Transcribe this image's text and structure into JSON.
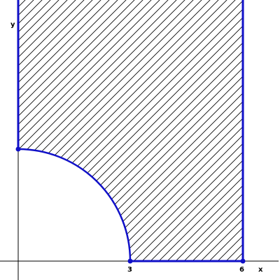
{
  "axes": {
    "x_label": "x",
    "y_label": "y"
  },
  "tick_labels": {
    "three": "3",
    "six": "6"
  },
  "region": {
    "description_values": {
      "inner_radius": 3,
      "right_bound_x": 6,
      "left_bound_x": 0,
      "bottom_bound_y": 0
    },
    "hatch": true
  },
  "colors": {
    "boundary": "#1010c8",
    "hatch": "#000000",
    "axis": "#000000"
  }
}
